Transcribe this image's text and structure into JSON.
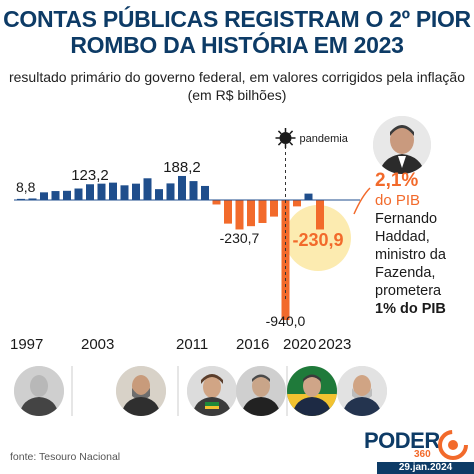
{
  "header": {
    "title": "CONTAS PÚBLICAS REGISTRAM O 2º PIOR ROMBO DA HISTÓRIA EM 2023",
    "subtitle": "resultado primário do governo federal, em valores corrigidos pela inflação (em R$ bilhões)"
  },
  "chart_data": {
    "type": "bar",
    "title": "CONTAS PÚBLICAS REGISTRAM O 2º PIOR ROMBO DA HISTÓRIA EM 2023",
    "ylabel": "R$ bilhões",
    "categories": [
      "1997",
      "1998",
      "1999",
      "2000",
      "2001",
      "2002",
      "2003",
      "2004",
      "2005",
      "2006",
      "2007",
      "2008",
      "2009",
      "2010",
      "2011",
      "2012",
      "2013",
      "2014",
      "2015",
      "2016",
      "2017",
      "2018",
      "2019",
      "2020",
      "2021",
      "2022",
      "2023"
    ],
    "values": [
      8.8,
      12,
      60,
      70,
      72,
      90,
      123.2,
      128,
      136,
      115,
      128,
      170,
      85,
      130,
      188.2,
      148,
      110,
      -35,
      -185,
      -230.7,
      -205,
      -180,
      -130,
      -940.0,
      -50,
      50,
      -230.9
    ],
    "data_labels": [
      {
        "category": "1997",
        "label": "8,8"
      },
      {
        "category": "2003",
        "label": "123,2"
      },
      {
        "category": "2011",
        "label": "188,2"
      },
      {
        "category": "2016",
        "label": "-230,7"
      },
      {
        "category": "2020",
        "label": "-940,0"
      },
      {
        "category": "2023",
        "label": "-230,9"
      }
    ],
    "positive_color": "#1f4e8c",
    "negative_color": "#f26a2b",
    "highlight_color": "#fcebb0",
    "annotation": "pandemia",
    "x_tick_labels": [
      "1997",
      "2003",
      "2011",
      "2016",
      "2020",
      "2023"
    ],
    "grid": false
  },
  "side_note": {
    "pct": "2,1%",
    "pct_suffix": "do PIB",
    "text": "Fernando Haddad, ministro da Fazenda, prometera",
    "goal": "1% do PIB"
  },
  "portraits": [
    {
      "name": "president-1"
    },
    {
      "name": "president-2"
    },
    {
      "name": "president-3"
    },
    {
      "name": "president-4"
    },
    {
      "name": "president-5"
    },
    {
      "name": "president-6"
    }
  ],
  "footer": {
    "source": "fonte: Tesouro Nacional",
    "brand": "PODER",
    "brand_sub": "360",
    "date": "29.jan.2024"
  },
  "colors": {
    "navy": "#0d3b66",
    "orange": "#f26a2b"
  }
}
